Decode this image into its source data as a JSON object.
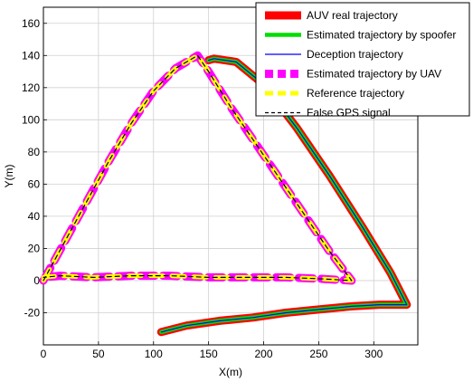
{
  "chart_data": {
    "type": "line",
    "title": "",
    "xlabel": "X(m)",
    "ylabel": "Y(m)",
    "xlim": [
      0,
      340
    ],
    "ylim": [
      -40,
      170
    ],
    "xticks": [
      0,
      50,
      100,
      150,
      200,
      250,
      300
    ],
    "yticks": [
      -20,
      0,
      20,
      40,
      60,
      80,
      100,
      120,
      140,
      160
    ],
    "grid": true,
    "legend_position": "top-right",
    "series": [
      {
        "name": "AUV real trajectory",
        "color": "#ff0000",
        "style": "solid-thick",
        "x": [
          107,
          130,
          160,
          190,
          220,
          250,
          280,
          305,
          322,
          330,
          330,
          315,
          290,
          260,
          230,
          200,
          175,
          155,
          150
        ],
        "y": [
          -32,
          -28,
          -25,
          -23,
          -20,
          -18,
          -16,
          -15,
          -15,
          -15,
          -15,
          5,
          33,
          65,
          95,
          122,
          136,
          138,
          137
        ]
      },
      {
        "name": "Estimated trajectory by spoofer",
        "color": "#00dd00",
        "style": "solid-medium",
        "x": [
          107,
          130,
          160,
          190,
          220,
          250,
          280,
          305,
          322,
          330,
          330,
          315,
          290,
          260,
          230,
          200,
          175,
          155,
          150
        ],
        "y": [
          -32,
          -28,
          -25,
          -23,
          -20,
          -18,
          -16,
          -15,
          -15,
          -15,
          -15,
          5,
          33,
          65,
          95,
          122,
          136,
          138,
          137
        ]
      },
      {
        "name": "Deception trajectory",
        "color": "#0000ff",
        "style": "solid-thin",
        "x": [
          107,
          130,
          160,
          190,
          220,
          250,
          280,
          305,
          322,
          330,
          330,
          315,
          290,
          260,
          230,
          200,
          175,
          155,
          150
        ],
        "y": [
          -32,
          -28,
          -25,
          -23,
          -20,
          -18,
          -16,
          -15,
          -15,
          -15,
          -15,
          5,
          33,
          65,
          95,
          122,
          136,
          138,
          137
        ]
      },
      {
        "name": "Estimated trajectory by UAV",
        "color": "#ff00ff",
        "style": "dashed-thick",
        "x": [
          0,
          20,
          40,
          60,
          80,
          100,
          120,
          140,
          150,
          170,
          200,
          230,
          260,
          280,
          255,
          220,
          185,
          150,
          115,
          80,
          45,
          15,
          0
        ],
        "y": [
          0,
          25,
          50,
          75,
          98,
          118,
          132,
          140,
          130,
          108,
          78,
          48,
          18,
          0,
          1,
          2,
          2,
          2,
          3,
          3,
          2,
          3,
          2
        ]
      },
      {
        "name": "Reference trajectory",
        "color": "#ffff00",
        "style": "dashed-medium",
        "x": [
          0,
          20,
          40,
          60,
          80,
          100,
          120,
          140,
          150,
          170,
          200,
          230,
          260,
          280,
          255,
          220,
          185,
          150,
          115,
          80,
          45,
          15,
          0
        ],
        "y": [
          0,
          25,
          50,
          75,
          98,
          118,
          132,
          140,
          130,
          108,
          78,
          48,
          18,
          0,
          1,
          2,
          2,
          2,
          3,
          3,
          2,
          3,
          2
        ]
      },
      {
        "name": "False GPS signal",
        "color": "#000000",
        "style": "dashed-thin",
        "x": [
          0,
          20,
          40,
          60,
          80,
          100,
          120,
          140,
          150,
          170,
          200,
          230,
          260,
          280,
          255,
          220,
          185,
          150,
          115,
          80,
          45,
          15,
          0
        ],
        "y": [
          0,
          25,
          50,
          75,
          98,
          118,
          132,
          140,
          130,
          108,
          78,
          48,
          18,
          0,
          1,
          2,
          2,
          2,
          3,
          3,
          2,
          3,
          2
        ]
      }
    ]
  }
}
